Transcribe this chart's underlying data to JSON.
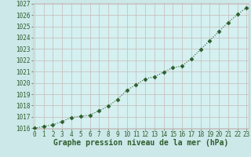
{
  "x": [
    0,
    1,
    2,
    3,
    4,
    5,
    6,
    7,
    8,
    9,
    10,
    11,
    12,
    13,
    14,
    15,
    16,
    17,
    18,
    19,
    20,
    21,
    22,
    23
  ],
  "y": [
    1016.0,
    1016.15,
    1016.3,
    1016.6,
    1016.95,
    1017.05,
    1017.15,
    1017.55,
    1017.95,
    1018.55,
    1019.35,
    1019.85,
    1020.35,
    1020.55,
    1020.95,
    1021.35,
    1021.5,
    1022.15,
    1022.95,
    1023.75,
    1024.55,
    1025.35,
    1026.05,
    1026.65
  ],
  "ylim_min": 1016,
  "ylim_max": 1027,
  "xlim_min": 0,
  "xlim_max": 23,
  "yticks": [
    1016,
    1017,
    1018,
    1019,
    1020,
    1021,
    1022,
    1023,
    1024,
    1025,
    1026,
    1027
  ],
  "xticks": [
    0,
    1,
    2,
    3,
    4,
    5,
    6,
    7,
    8,
    9,
    10,
    11,
    12,
    13,
    14,
    15,
    16,
    17,
    18,
    19,
    20,
    21,
    22,
    23
  ],
  "line_color": "#2d5e2d",
  "marker": "D",
  "marker_size": 2.5,
  "bg_color": "#cce8e8",
  "plot_bg_color": "#d4f0f0",
  "grid_color": "#c8b8b8",
  "xlabel": "Graphe pression niveau de la mer (hPa)",
  "xlabel_color": "#2d5e2d",
  "tick_color": "#2d5e2d",
  "xlabel_fontsize": 7,
  "tick_fontsize": 5.5
}
